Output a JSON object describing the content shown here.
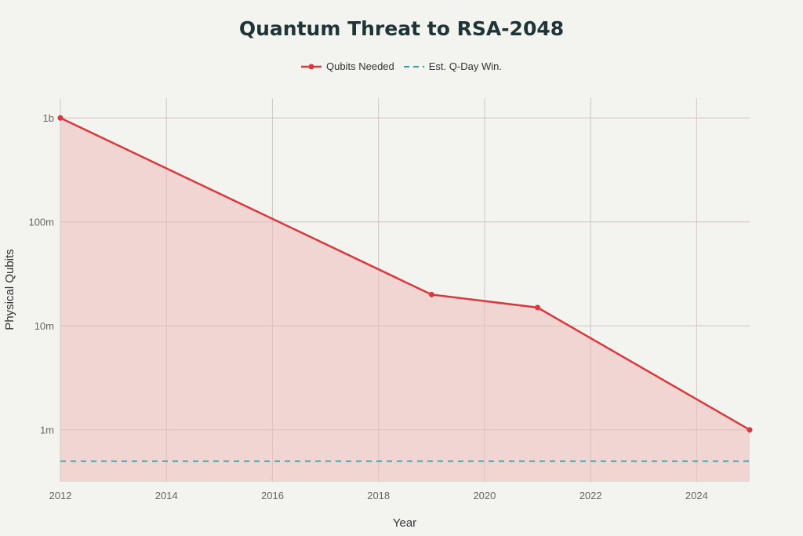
{
  "chart_data": {
    "type": "area",
    "title": "Quantum Threat to RSA-2048",
    "xlabel": "Year",
    "ylabel": "Physical Qubits",
    "xlim": [
      2012,
      2025
    ],
    "ylim": [
      316000,
      1550000000
    ],
    "yscale": "log",
    "grid": true,
    "legend_position": "top",
    "x_ticks": [
      2012,
      2014,
      2016,
      2018,
      2020,
      2022,
      2024
    ],
    "y_ticks": [
      {
        "value": 1000000,
        "label": "1m"
      },
      {
        "value": 10000000,
        "label": "10m"
      },
      {
        "value": 100000000,
        "label": "100m"
      },
      {
        "value": 1000000000,
        "label": "1b"
      }
    ],
    "series": [
      {
        "name": "Qubits Needed",
        "color": "#d9393d",
        "fill": "#efcfcc",
        "x": [
          2012,
          2019,
          2021,
          2025
        ],
        "y": [
          1000000000,
          20000000,
          15000000,
          1000000
        ]
      },
      {
        "name": "Est. Q-Day Win.",
        "color": "#1ba7ad",
        "style": "dashed",
        "x": [
          2012,
          2025
        ],
        "y": [
          500000,
          500000
        ]
      }
    ]
  }
}
